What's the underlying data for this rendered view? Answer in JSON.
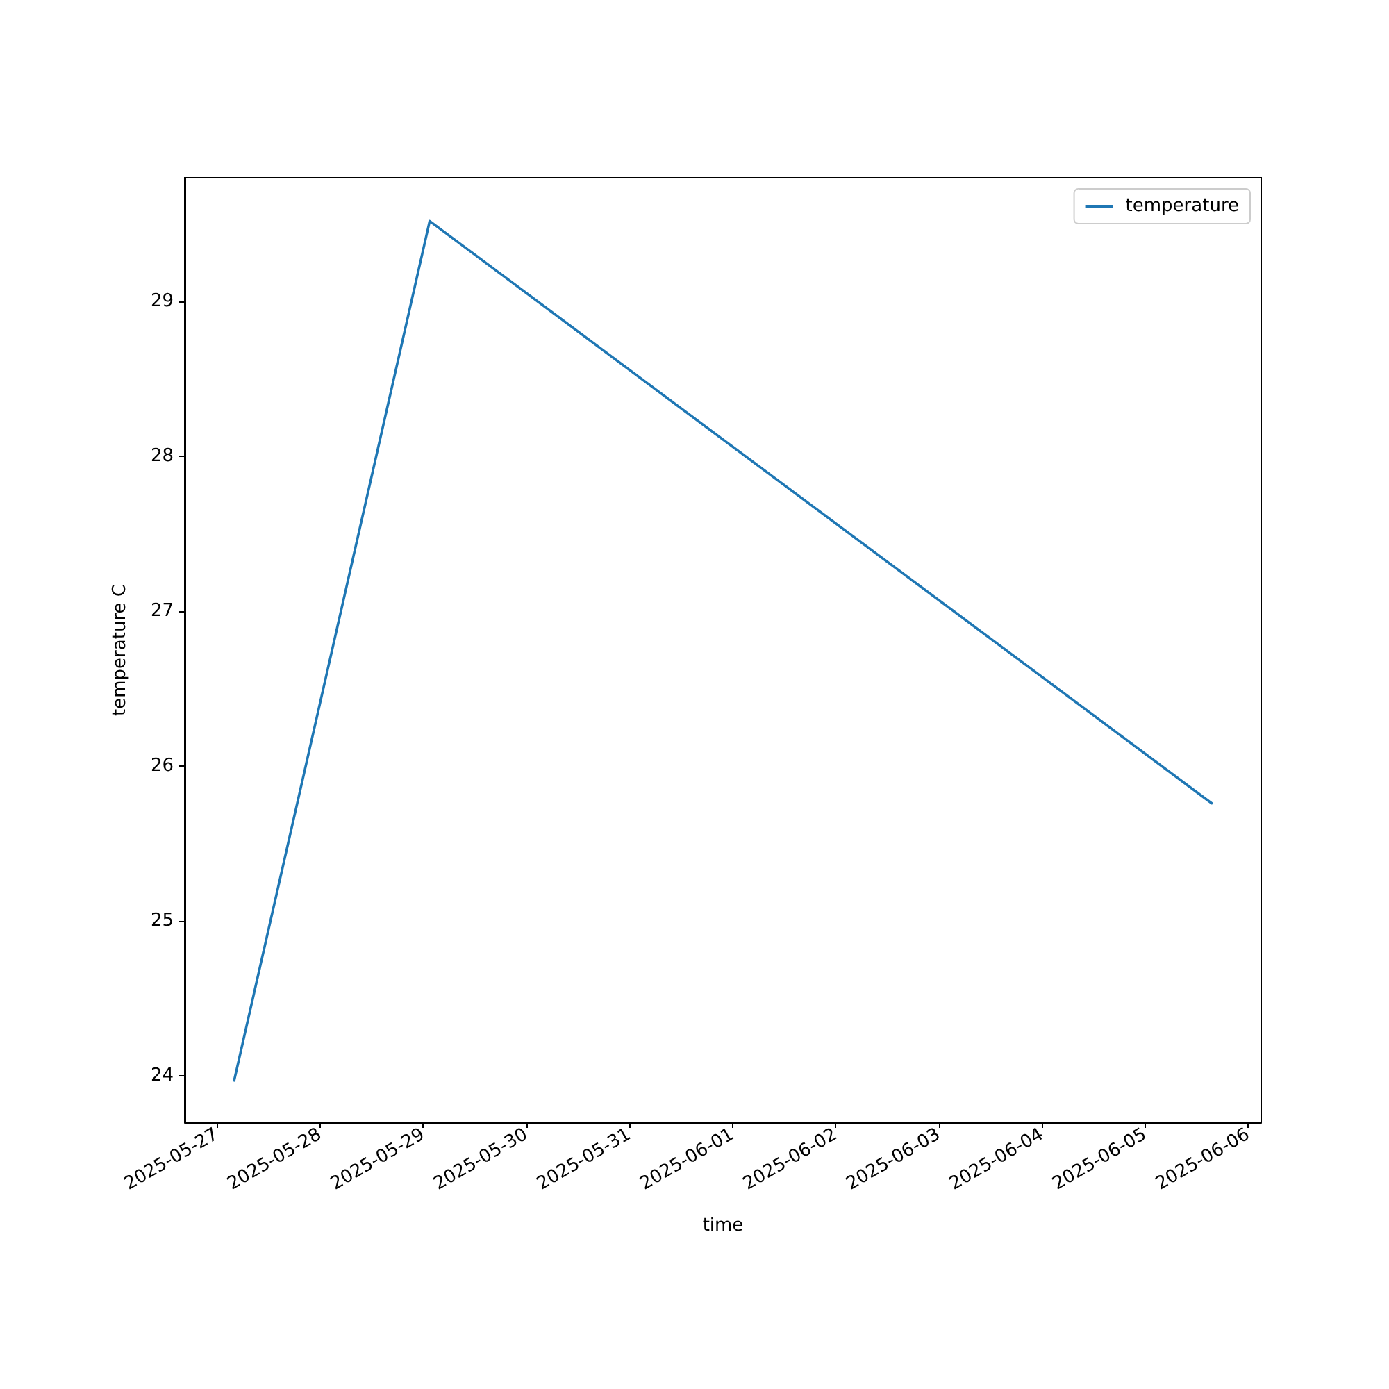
{
  "chart_data": {
    "type": "line",
    "xlabel": "time",
    "ylabel": "temperature C",
    "x": [
      "2025-05-27T04:00",
      "2025-05-29T01:30",
      "2025-06-05T15:30"
    ],
    "series": [
      {
        "name": "temperature",
        "color": "#1f77b4",
        "values": [
          23.97,
          29.52,
          25.76
        ]
      }
    ],
    "xlim": [
      "2025-05-26T16:30",
      "2025-06-06T03:00"
    ],
    "xticks": [
      "2025-05-27",
      "2025-05-28",
      "2025-05-29",
      "2025-05-30",
      "2025-05-31",
      "2025-06-01",
      "2025-06-02",
      "2025-06-03",
      "2025-06-04",
      "2025-06-05",
      "2025-06-06"
    ],
    "ylim": [
      23.7,
      29.8
    ],
    "yticks": [
      24,
      25,
      26,
      27,
      28,
      29
    ],
    "legend": "top right",
    "grid": false,
    "marker": "none",
    "line_style": "solid"
  }
}
